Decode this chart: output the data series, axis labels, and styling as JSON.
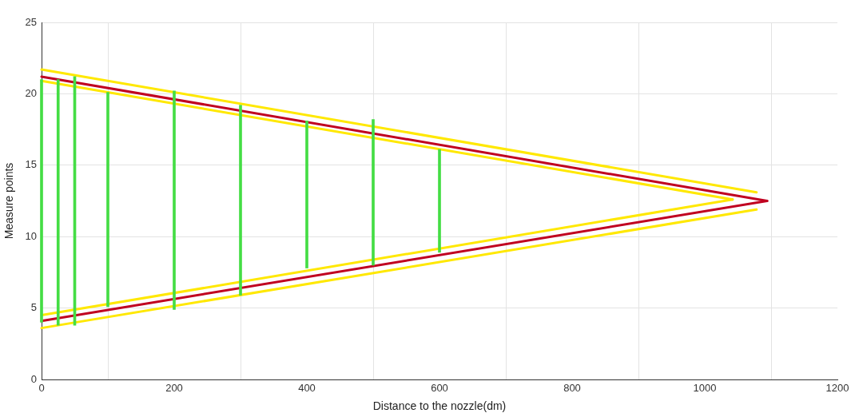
{
  "chart_data": {
    "type": "line",
    "xlabel": "Distance to the nozzle(dm)",
    "ylabel": "Measure points",
    "xlim": [
      0,
      1200
    ],
    "xticks": [
      0,
      200,
      400,
      600,
      800,
      1000,
      1200
    ],
    "ylim": [
      0,
      25
    ],
    "yticks": [
      0,
      5,
      10,
      15,
      20,
      25
    ],
    "grid": true,
    "marker": "none",
    "line_style": "solid",
    "series": [
      {
        "color": "#ffe800",
        "x": [
          0,
          1078
        ],
        "values": [
          21.7,
          13.1
        ]
      },
      {
        "color": "#ffe800",
        "x": [
          0,
          1042
        ],
        "values": [
          20.9,
          12.6
        ]
      },
      {
        "color": "#ffe800",
        "x": [
          0,
          1042
        ],
        "values": [
          4.5,
          12.6
        ]
      },
      {
        "color": "#ffe800",
        "x": [
          0,
          1078
        ],
        "values": [
          3.6,
          11.9
        ]
      },
      {
        "color": "#c00020",
        "x": [
          0,
          1094
        ],
        "values": [
          21.2,
          12.5
        ]
      },
      {
        "color": "#c00020",
        "x": [
          0,
          1094
        ],
        "values": [
          4.1,
          12.5
        ]
      },
      {
        "type": "bar",
        "color": "#44dd44",
        "x": [
          0,
          25,
          50,
          100,
          200,
          300,
          400,
          500,
          600
        ],
        "base": [
          4.0,
          3.8,
          3.8,
          5.1,
          4.9,
          5.9,
          7.8,
          8.0,
          8.9
        ],
        "values": [
          17.0,
          17.2,
          17.4,
          15.0,
          15.3,
          13.3,
          10.3,
          10.2,
          7.2
        ]
      }
    ]
  }
}
